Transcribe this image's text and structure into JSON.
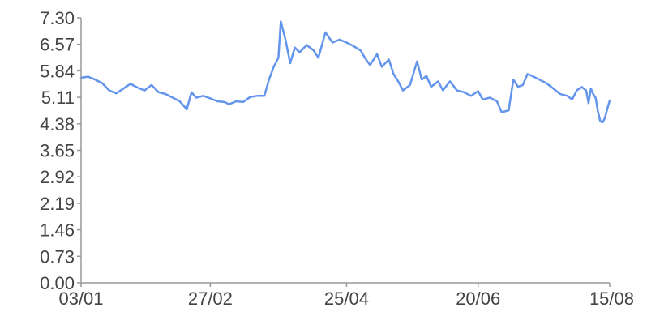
{
  "chart_data": {
    "type": "line",
    "title": "",
    "xlabel": "",
    "ylabel": "",
    "grid": false,
    "legend": "none",
    "x_ticks": [
      "03/01",
      "27/02",
      "25/04",
      "20/06",
      "15/08"
    ],
    "y_ticks": [
      "0.00",
      "0.73",
      "1.46",
      "2.19",
      "2.92",
      "3.65",
      "4.38",
      "5.11",
      "5.84",
      "6.57",
      "7.30"
    ],
    "xlim": [
      "2000-01-03",
      "2000-08-15"
    ],
    "ylim": [
      0,
      7.3
    ],
    "series": [
      {
        "color": "#6495ed",
        "points": [
          [
            "2000-01-03",
            5.65
          ],
          [
            "2000-01-06",
            5.68
          ],
          [
            "2000-01-09",
            5.6
          ],
          [
            "2000-01-12",
            5.5
          ],
          [
            "2000-01-15",
            5.3
          ],
          [
            "2000-01-18",
            5.22
          ],
          [
            "2000-01-21",
            5.35
          ],
          [
            "2000-01-24",
            5.48
          ],
          [
            "2000-01-27",
            5.38
          ],
          [
            "2000-01-30",
            5.3
          ],
          [
            "2000-02-02",
            5.45
          ],
          [
            "2000-02-05",
            5.25
          ],
          [
            "2000-02-08",
            5.2
          ],
          [
            "2000-02-11",
            5.1
          ],
          [
            "2000-02-14",
            5.0
          ],
          [
            "2000-02-17",
            4.78
          ],
          [
            "2000-02-19",
            5.25
          ],
          [
            "2000-02-21",
            5.1
          ],
          [
            "2000-02-24",
            5.15
          ],
          [
            "2000-02-27",
            5.08
          ],
          [
            "2000-03-01",
            5.0
          ],
          [
            "2000-03-04",
            4.98
          ],
          [
            "2000-03-06",
            4.92
          ],
          [
            "2000-03-09",
            5.0
          ],
          [
            "2000-03-12",
            4.98
          ],
          [
            "2000-03-15",
            5.12
          ],
          [
            "2000-03-18",
            5.15
          ],
          [
            "2000-03-21",
            5.15
          ],
          [
            "2000-03-23",
            5.6
          ],
          [
            "2000-03-25",
            5.95
          ],
          [
            "2000-03-27",
            6.2
          ],
          [
            "2000-03-28",
            7.2
          ],
          [
            "2000-03-30",
            6.7
          ],
          [
            "2000-04-01",
            6.05
          ],
          [
            "2000-04-03",
            6.48
          ],
          [
            "2000-04-05",
            6.35
          ],
          [
            "2000-04-08",
            6.55
          ],
          [
            "2000-04-11",
            6.4
          ],
          [
            "2000-04-13",
            6.2
          ],
          [
            "2000-04-16",
            6.9
          ],
          [
            "2000-04-19",
            6.62
          ],
          [
            "2000-04-22",
            6.7
          ],
          [
            "2000-04-25",
            6.62
          ],
          [
            "2000-04-28",
            6.52
          ],
          [
            "2000-05-01",
            6.4
          ],
          [
            "2000-05-03",
            6.18
          ],
          [
            "2000-05-05",
            6.0
          ],
          [
            "2000-05-08",
            6.3
          ],
          [
            "2000-05-10",
            5.95
          ],
          [
            "2000-05-13",
            6.15
          ],
          [
            "2000-05-15",
            5.75
          ],
          [
            "2000-05-17",
            5.55
          ],
          [
            "2000-05-19",
            5.3
          ],
          [
            "2000-05-22",
            5.45
          ],
          [
            "2000-05-25",
            6.1
          ],
          [
            "2000-05-27",
            5.6
          ],
          [
            "2000-05-29",
            5.7
          ],
          [
            "2000-05-31",
            5.4
          ],
          [
            "2000-06-03",
            5.55
          ],
          [
            "2000-06-05",
            5.3
          ],
          [
            "2000-06-08",
            5.55
          ],
          [
            "2000-06-11",
            5.3
          ],
          [
            "2000-06-14",
            5.25
          ],
          [
            "2000-06-17",
            5.15
          ],
          [
            "2000-06-20",
            5.28
          ],
          [
            "2000-06-22",
            5.05
          ],
          [
            "2000-06-25",
            5.1
          ],
          [
            "2000-06-28",
            5.0
          ],
          [
            "2000-06-30",
            4.7
          ],
          [
            "2000-07-03",
            4.75
          ],
          [
            "2000-07-05",
            5.6
          ],
          [
            "2000-07-07",
            5.4
          ],
          [
            "2000-07-09",
            5.45
          ],
          [
            "2000-07-11",
            5.75
          ],
          [
            "2000-07-13",
            5.7
          ],
          [
            "2000-07-16",
            5.6
          ],
          [
            "2000-07-19",
            5.5
          ],
          [
            "2000-07-22",
            5.35
          ],
          [
            "2000-07-25",
            5.2
          ],
          [
            "2000-07-28",
            5.15
          ],
          [
            "2000-07-30",
            5.05
          ],
          [
            "2000-08-01",
            5.3
          ],
          [
            "2000-08-03",
            5.4
          ],
          [
            "2000-08-05",
            5.3
          ],
          [
            "2000-08-06",
            4.95
          ],
          [
            "2000-08-07",
            5.35
          ],
          [
            "2000-08-08",
            5.2
          ],
          [
            "2000-08-09",
            5.1
          ],
          [
            "2000-08-10",
            4.72
          ],
          [
            "2000-08-11",
            4.45
          ],
          [
            "2000-08-12",
            4.42
          ],
          [
            "2000-08-13",
            4.55
          ],
          [
            "2000-08-14",
            4.8
          ],
          [
            "2000-08-15",
            5.02
          ]
        ]
      }
    ]
  }
}
